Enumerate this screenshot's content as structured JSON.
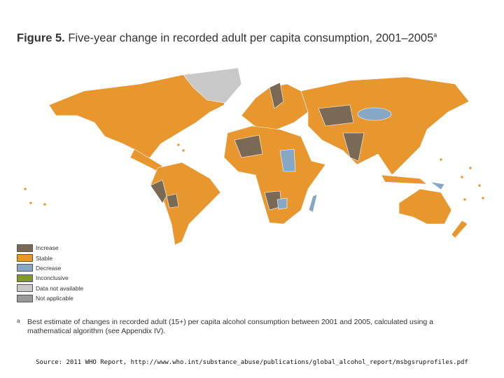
{
  "header": {
    "figure_label": "Figure 5.",
    "title": "Five-year change in recorded adult per capita consumption, 2001–2005",
    "title_note": "a"
  },
  "legend": [
    {
      "label": "Increase",
      "color": "#7a6a55"
    },
    {
      "label": "Stable",
      "color": "#e8962e"
    },
    {
      "label": "Decrease",
      "color": "#86a8c5"
    },
    {
      "label": "Inconclusive",
      "color": "#7f9a2a"
    },
    {
      "label": "Data not available",
      "color": "#c8c8c8"
    },
    {
      "label": "Not applicable",
      "color": "#999999"
    }
  ],
  "footnote": {
    "marker": "a",
    "text": "Best estimate of changes in recorded adult (15+) per capita alcohol consumption between 2001 and 2005, calculated using a mathematical algorithm (see Appendix IV)."
  },
  "source": "Source: 2011 WHO Report, http://www.who.int/substance_abuse/publications/global_alcohol_report/msbgsruprofiles.pdf"
}
